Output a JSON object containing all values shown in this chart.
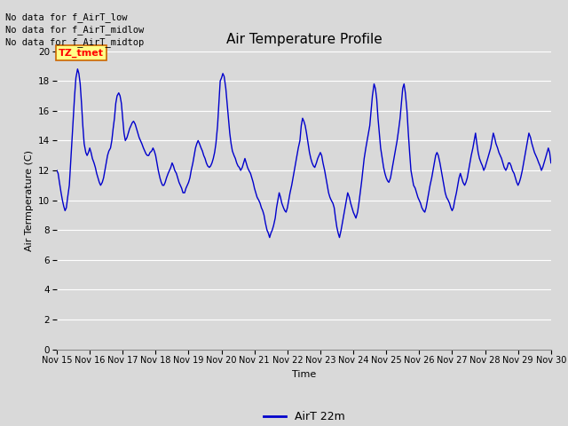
{
  "title": "Air Temperature Profile",
  "xlabel": "Time",
  "ylabel": "Air Termperature (C)",
  "legend_label": "AirT 22m",
  "annotations": [
    "No data for f_AirT_low",
    "No data for f_AirT_midlow",
    "No data for f_AirT_midtop"
  ],
  "tz_label": "TZ_tmet",
  "ylim": [
    0,
    20
  ],
  "yticks": [
    0,
    2,
    4,
    6,
    8,
    10,
    12,
    14,
    16,
    18,
    20
  ],
  "line_color": "#0000cc",
  "bg_color": "#d9d9d9",
  "x_ticks": [
    15,
    16,
    17,
    18,
    19,
    20,
    21,
    22,
    23,
    24,
    25,
    26,
    27,
    28,
    29,
    30
  ],
  "x_tick_labels": [
    "Nov 15",
    "Nov 16",
    "Nov 17",
    "Nov 18",
    "Nov 19",
    "Nov 20",
    "Nov 21",
    "Nov 22",
    "Nov 23",
    "Nov 24",
    "Nov 25",
    "Nov 26",
    "Nov 27",
    "Nov 28",
    "Nov 29",
    "Nov 30"
  ],
  "time_values": [
    15.0,
    15.04,
    15.08,
    15.13,
    15.17,
    15.21,
    15.25,
    15.29,
    15.33,
    15.38,
    15.42,
    15.46,
    15.5,
    15.54,
    15.58,
    15.63,
    15.67,
    15.71,
    15.75,
    15.79,
    15.83,
    15.88,
    15.92,
    15.96,
    16.0,
    16.04,
    16.08,
    16.13,
    16.17,
    16.21,
    16.25,
    16.29,
    16.33,
    16.38,
    16.42,
    16.46,
    16.5,
    16.54,
    16.58,
    16.63,
    16.67,
    16.71,
    16.75,
    16.79,
    16.83,
    16.88,
    16.92,
    16.96,
    17.0,
    17.04,
    17.08,
    17.13,
    17.17,
    17.21,
    17.25,
    17.29,
    17.33,
    17.38,
    17.42,
    17.46,
    17.5,
    17.54,
    17.58,
    17.63,
    17.67,
    17.71,
    17.75,
    17.79,
    17.83,
    17.88,
    17.92,
    17.96,
    18.0,
    18.04,
    18.08,
    18.13,
    18.17,
    18.21,
    18.25,
    18.29,
    18.33,
    18.38,
    18.42,
    18.46,
    18.5,
    18.54,
    18.58,
    18.63,
    18.67,
    18.71,
    18.75,
    18.79,
    18.83,
    18.88,
    18.92,
    18.96,
    19.0,
    19.04,
    19.08,
    19.13,
    19.17,
    19.21,
    19.25,
    19.29,
    19.33,
    19.38,
    19.42,
    19.46,
    19.5,
    19.54,
    19.58,
    19.63,
    19.67,
    19.71,
    19.75,
    19.79,
    19.83,
    19.88,
    19.92,
    19.96,
    20.0,
    20.04,
    20.08,
    20.13,
    20.17,
    20.21,
    20.25,
    20.29,
    20.33,
    20.38,
    20.42,
    20.46,
    20.5,
    20.54,
    20.58,
    20.63,
    20.67,
    20.71,
    20.75,
    20.79,
    20.83,
    20.88,
    20.92,
    20.96,
    21.0,
    21.04,
    21.08,
    21.13,
    21.17,
    21.21,
    21.25,
    21.29,
    21.33,
    21.38,
    21.42,
    21.46,
    21.5,
    21.54,
    21.58,
    21.63,
    21.67,
    21.71,
    21.75,
    21.79,
    21.83,
    21.88,
    21.92,
    21.96,
    22.0,
    22.04,
    22.08,
    22.13,
    22.17,
    22.21,
    22.25,
    22.29,
    22.33,
    22.38,
    22.42,
    22.46,
    22.5,
    22.54,
    22.58,
    22.63,
    22.67,
    22.71,
    22.75,
    22.79,
    22.83,
    22.88,
    22.92,
    22.96,
    23.0,
    23.04,
    23.08,
    23.13,
    23.17,
    23.21,
    23.25,
    23.29,
    23.33,
    23.38,
    23.42,
    23.46,
    23.5,
    23.54,
    23.58,
    23.63,
    23.67,
    23.71,
    23.75,
    23.79,
    23.83,
    23.88,
    23.92,
    23.96,
    24.0,
    24.04,
    24.08,
    24.13,
    24.17,
    24.21,
    24.25,
    24.29,
    24.33,
    24.38,
    24.42,
    24.46,
    24.5,
    24.54,
    24.58,
    24.63,
    24.67,
    24.71,
    24.75,
    24.79,
    24.83,
    24.88,
    24.92,
    24.96,
    25.0,
    25.04,
    25.08,
    25.13,
    25.17,
    25.21,
    25.25,
    25.29,
    25.33,
    25.38,
    25.42,
    25.46,
    25.5,
    25.54,
    25.58,
    25.63,
    25.67,
    25.71,
    25.75,
    25.79,
    25.83,
    25.88,
    25.92,
    25.96,
    26.0,
    26.04,
    26.08,
    26.13,
    26.17,
    26.21,
    26.25,
    26.29,
    26.33,
    26.38,
    26.42,
    26.46,
    26.5,
    26.54,
    26.58,
    26.63,
    26.67,
    26.71,
    26.75,
    26.79,
    26.83,
    26.88,
    26.92,
    26.96,
    27.0,
    27.04,
    27.08,
    27.13,
    27.17,
    27.21,
    27.25,
    27.29,
    27.33,
    27.38,
    27.42,
    27.46,
    27.5,
    27.54,
    27.58,
    27.63,
    27.67,
    27.71,
    27.75,
    27.79,
    27.83,
    27.88,
    27.92,
    27.96,
    28.0,
    28.04,
    28.08,
    28.13,
    28.17,
    28.21,
    28.25,
    28.29,
    28.33,
    28.38,
    28.42,
    28.46,
    28.5,
    28.54,
    28.58,
    28.63,
    28.67,
    28.71,
    28.75,
    28.79,
    28.83,
    28.88,
    28.92,
    28.96,
    29.0,
    29.04,
    29.08,
    29.13,
    29.17,
    29.21,
    29.25,
    29.29,
    29.33,
    29.38,
    29.42,
    29.46,
    29.5,
    29.54,
    29.58,
    29.63,
    29.67,
    29.71,
    29.75,
    29.79,
    29.83,
    29.88,
    29.92,
    29.96,
    30.0
  ],
  "temp_values": [
    12.0,
    11.8,
    11.2,
    10.5,
    10.0,
    9.6,
    9.3,
    9.5,
    10.2,
    11.0,
    12.5,
    14.0,
    15.5,
    17.0,
    18.2,
    18.8,
    18.5,
    17.8,
    16.5,
    15.0,
    13.8,
    13.2,
    13.0,
    13.2,
    13.5,
    13.2,
    12.8,
    12.5,
    12.2,
    11.8,
    11.5,
    11.2,
    11.0,
    11.2,
    11.5,
    12.0,
    12.5,
    13.0,
    13.3,
    13.5,
    14.0,
    14.8,
    15.5,
    16.5,
    17.0,
    17.2,
    17.0,
    16.5,
    15.5,
    14.5,
    14.0,
    14.2,
    14.5,
    14.8,
    15.0,
    15.2,
    15.3,
    15.1,
    14.8,
    14.5,
    14.2,
    14.0,
    13.8,
    13.5,
    13.3,
    13.1,
    13.0,
    13.0,
    13.2,
    13.3,
    13.5,
    13.3,
    13.0,
    12.5,
    12.0,
    11.5,
    11.2,
    11.0,
    11.0,
    11.2,
    11.5,
    11.8,
    12.0,
    12.2,
    12.5,
    12.3,
    12.0,
    11.8,
    11.5,
    11.2,
    11.0,
    10.8,
    10.5,
    10.5,
    10.8,
    11.0,
    11.2,
    11.5,
    12.0,
    12.5,
    13.0,
    13.5,
    13.8,
    14.0,
    13.8,
    13.5,
    13.3,
    13.0,
    12.8,
    12.5,
    12.3,
    12.2,
    12.3,
    12.5,
    12.8,
    13.2,
    13.8,
    15.0,
    16.5,
    18.0,
    18.2,
    18.5,
    18.3,
    17.5,
    16.5,
    15.5,
    14.5,
    13.8,
    13.3,
    13.0,
    12.8,
    12.5,
    12.3,
    12.2,
    12.0,
    12.2,
    12.5,
    12.8,
    12.5,
    12.2,
    12.0,
    11.8,
    11.5,
    11.2,
    10.8,
    10.5,
    10.2,
    10.0,
    9.8,
    9.5,
    9.3,
    9.0,
    8.5,
    8.0,
    7.8,
    7.5,
    7.8,
    8.0,
    8.3,
    8.8,
    9.5,
    10.0,
    10.5,
    10.2,
    9.8,
    9.5,
    9.3,
    9.2,
    9.5,
    10.0,
    10.5,
    11.0,
    11.5,
    12.0,
    12.5,
    13.0,
    13.5,
    14.0,
    15.0,
    15.5,
    15.3,
    15.0,
    14.5,
    13.8,
    13.2,
    12.8,
    12.5,
    12.3,
    12.2,
    12.5,
    12.8,
    13.0,
    13.2,
    13.0,
    12.5,
    12.0,
    11.5,
    11.0,
    10.5,
    10.2,
    10.0,
    9.8,
    9.5,
    8.8,
    8.2,
    7.8,
    7.5,
    8.0,
    8.5,
    9.0,
    9.5,
    10.0,
    10.5,
    10.2,
    9.8,
    9.5,
    9.2,
    9.0,
    8.8,
    9.2,
    9.8,
    10.5,
    11.2,
    12.0,
    12.8,
    13.5,
    14.0,
    14.5,
    15.0,
    16.0,
    17.0,
    17.8,
    17.5,
    16.8,
    15.5,
    14.5,
    13.5,
    12.8,
    12.2,
    11.8,
    11.5,
    11.3,
    11.2,
    11.5,
    12.0,
    12.5,
    13.0,
    13.5,
    14.0,
    14.8,
    15.5,
    16.5,
    17.5,
    17.8,
    17.2,
    16.0,
    14.5,
    13.2,
    12.0,
    11.5,
    11.0,
    10.8,
    10.5,
    10.2,
    10.0,
    9.8,
    9.5,
    9.3,
    9.2,
    9.5,
    10.0,
    10.5,
    11.0,
    11.5,
    12.0,
    12.5,
    13.0,
    13.2,
    13.0,
    12.5,
    12.0,
    11.5,
    11.0,
    10.5,
    10.2,
    10.0,
    9.8,
    9.5,
    9.3,
    9.5,
    10.0,
    10.5,
    11.0,
    11.5,
    11.8,
    11.5,
    11.2,
    11.0,
    11.2,
    11.5,
    12.0,
    12.5,
    13.0,
    13.5,
    14.0,
    14.5,
    13.8,
    13.2,
    12.8,
    12.5,
    12.3,
    12.0,
    12.2,
    12.5,
    12.8,
    13.2,
    13.5,
    14.0,
    14.5,
    14.2,
    13.8,
    13.5,
    13.2,
    13.0,
    12.8,
    12.5,
    12.2,
    12.0,
    12.2,
    12.5,
    12.5,
    12.3,
    12.0,
    11.8,
    11.5,
    11.2,
    11.0,
    11.2,
    11.5,
    12.0,
    12.5,
    13.0,
    13.5,
    14.0,
    14.5,
    14.2,
    13.8,
    13.5,
    13.2,
    13.0,
    12.8,
    12.5,
    12.3,
    12.0,
    12.2,
    12.5,
    12.8,
    13.2,
    13.5,
    13.2,
    12.5
  ]
}
